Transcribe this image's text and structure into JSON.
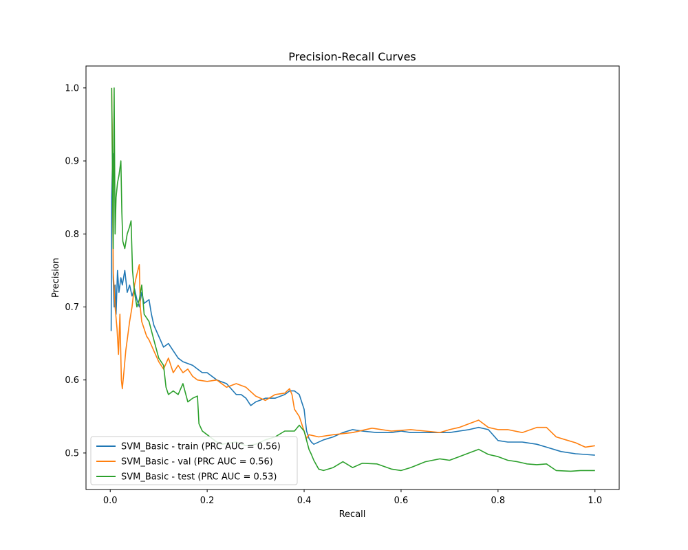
{
  "chart_data": {
    "type": "line",
    "title": "Precision-Recall Curves",
    "xlabel": "Recall",
    "ylabel": "Precision",
    "xlim": [
      -0.05,
      1.05
    ],
    "ylim": [
      0.45,
      1.03
    ],
    "xticks": [
      0.0,
      0.2,
      0.4,
      0.6,
      0.8,
      1.0
    ],
    "xtick_labels": [
      "0.0",
      "0.2",
      "0.4",
      "0.6",
      "0.8",
      "1.0"
    ],
    "yticks": [
      0.5,
      0.6,
      0.7,
      0.8,
      0.9,
      1.0
    ],
    "ytick_labels": [
      "0.5",
      "0.6",
      "0.7",
      "0.8",
      "0.9",
      "1.0"
    ],
    "grid": false,
    "legend_position": "lower-left",
    "series": [
      {
        "name": "SVM_Basic - train (PRC AUC = 0.56)",
        "color": "#1f77b4",
        "points": [
          [
            0.002,
            0.667
          ],
          [
            0.003,
            0.85
          ],
          [
            0.005,
            0.91
          ],
          [
            0.006,
            0.74
          ],
          [
            0.008,
            0.7
          ],
          [
            0.01,
            0.73
          ],
          [
            0.012,
            0.69
          ],
          [
            0.015,
            0.75
          ],
          [
            0.018,
            0.72
          ],
          [
            0.022,
            0.74
          ],
          [
            0.025,
            0.73
          ],
          [
            0.03,
            0.75
          ],
          [
            0.035,
            0.72
          ],
          [
            0.04,
            0.73
          ],
          [
            0.045,
            0.715
          ],
          [
            0.05,
            0.725
          ],
          [
            0.055,
            0.71
          ],
          [
            0.06,
            0.7
          ],
          [
            0.065,
            0.72
          ],
          [
            0.07,
            0.705
          ],
          [
            0.08,
            0.71
          ],
          [
            0.085,
            0.69
          ],
          [
            0.09,
            0.675
          ],
          [
            0.1,
            0.66
          ],
          [
            0.11,
            0.645
          ],
          [
            0.12,
            0.65
          ],
          [
            0.13,
            0.64
          ],
          [
            0.14,
            0.63
          ],
          [
            0.15,
            0.625
          ],
          [
            0.17,
            0.62
          ],
          [
            0.19,
            0.61
          ],
          [
            0.2,
            0.61
          ],
          [
            0.22,
            0.6
          ],
          [
            0.24,
            0.595
          ],
          [
            0.26,
            0.58
          ],
          [
            0.27,
            0.58
          ],
          [
            0.28,
            0.575
          ],
          [
            0.29,
            0.565
          ],
          [
            0.3,
            0.57
          ],
          [
            0.32,
            0.575
          ],
          [
            0.34,
            0.575
          ],
          [
            0.36,
            0.58
          ],
          [
            0.37,
            0.585
          ],
          [
            0.38,
            0.585
          ],
          [
            0.39,
            0.58
          ],
          [
            0.395,
            0.57
          ],
          [
            0.4,
            0.56
          ],
          [
            0.405,
            0.53
          ],
          [
            0.41,
            0.52
          ],
          [
            0.415,
            0.515
          ],
          [
            0.42,
            0.512
          ],
          [
            0.44,
            0.518
          ],
          [
            0.46,
            0.522
          ],
          [
            0.48,
            0.528
          ],
          [
            0.5,
            0.532
          ],
          [
            0.52,
            0.53
          ],
          [
            0.55,
            0.528
          ],
          [
            0.58,
            0.528
          ],
          [
            0.6,
            0.53
          ],
          [
            0.62,
            0.528
          ],
          [
            0.65,
            0.528
          ],
          [
            0.7,
            0.528
          ],
          [
            0.72,
            0.53
          ],
          [
            0.74,
            0.532
          ],
          [
            0.76,
            0.535
          ],
          [
            0.78,
            0.532
          ],
          [
            0.8,
            0.517
          ],
          [
            0.82,
            0.515
          ],
          [
            0.85,
            0.515
          ],
          [
            0.88,
            0.512
          ],
          [
            0.9,
            0.508
          ],
          [
            0.93,
            0.502
          ],
          [
            0.96,
            0.499
          ],
          [
            0.98,
            0.498
          ],
          [
            1.0,
            0.497
          ]
        ]
      },
      {
        "name": "SVM_Basic - val (PRC AUC = 0.56)",
        "color": "#ff7f0e",
        "points": [
          [
            0.003,
            1.0
          ],
          [
            0.004,
            0.95
          ],
          [
            0.006,
            0.75
          ],
          [
            0.01,
            0.7
          ],
          [
            0.014,
            0.67
          ],
          [
            0.017,
            0.635
          ],
          [
            0.02,
            0.69
          ],
          [
            0.023,
            0.6
          ],
          [
            0.025,
            0.588
          ],
          [
            0.028,
            0.61
          ],
          [
            0.032,
            0.64
          ],
          [
            0.036,
            0.66
          ],
          [
            0.04,
            0.68
          ],
          [
            0.045,
            0.7
          ],
          [
            0.05,
            0.73
          ],
          [
            0.055,
            0.745
          ],
          [
            0.06,
            0.758
          ],
          [
            0.062,
            0.7
          ],
          [
            0.065,
            0.68
          ],
          [
            0.07,
            0.67
          ],
          [
            0.075,
            0.66
          ],
          [
            0.08,
            0.655
          ],
          [
            0.09,
            0.64
          ],
          [
            0.1,
            0.625
          ],
          [
            0.11,
            0.615
          ],
          [
            0.12,
            0.63
          ],
          [
            0.13,
            0.61
          ],
          [
            0.14,
            0.62
          ],
          [
            0.15,
            0.61
          ],
          [
            0.16,
            0.615
          ],
          [
            0.17,
            0.605
          ],
          [
            0.18,
            0.6
          ],
          [
            0.2,
            0.598
          ],
          [
            0.22,
            0.6
          ],
          [
            0.24,
            0.59
          ],
          [
            0.26,
            0.595
          ],
          [
            0.28,
            0.59
          ],
          [
            0.3,
            0.578
          ],
          [
            0.32,
            0.572
          ],
          [
            0.34,
            0.58
          ],
          [
            0.36,
            0.582
          ],
          [
            0.37,
            0.588
          ],
          [
            0.375,
            0.58
          ],
          [
            0.38,
            0.56
          ],
          [
            0.39,
            0.55
          ],
          [
            0.4,
            0.53
          ],
          [
            0.405,
            0.52
          ],
          [
            0.41,
            0.525
          ],
          [
            0.43,
            0.522
          ],
          [
            0.46,
            0.525
          ],
          [
            0.5,
            0.528
          ],
          [
            0.54,
            0.534
          ],
          [
            0.58,
            0.53
          ],
          [
            0.62,
            0.532
          ],
          [
            0.65,
            0.53
          ],
          [
            0.68,
            0.528
          ],
          [
            0.7,
            0.532
          ],
          [
            0.72,
            0.535
          ],
          [
            0.74,
            0.54
          ],
          [
            0.76,
            0.545
          ],
          [
            0.78,
            0.535
          ],
          [
            0.8,
            0.532
          ],
          [
            0.82,
            0.532
          ],
          [
            0.85,
            0.528
          ],
          [
            0.88,
            0.535
          ],
          [
            0.9,
            0.535
          ],
          [
            0.92,
            0.522
          ],
          [
            0.94,
            0.518
          ],
          [
            0.96,
            0.514
          ],
          [
            0.98,
            0.508
          ],
          [
            1.0,
            0.51
          ]
        ]
      },
      {
        "name": "SVM_Basic - test (PRC AUC = 0.53)",
        "color": "#2ca02c",
        "points": [
          [
            0.003,
            1.0
          ],
          [
            0.006,
            0.78
          ],
          [
            0.008,
            1.0
          ],
          [
            0.01,
            0.8
          ],
          [
            0.012,
            0.85
          ],
          [
            0.015,
            0.87
          ],
          [
            0.018,
            0.88
          ],
          [
            0.022,
            0.9
          ],
          [
            0.024,
            0.83
          ],
          [
            0.026,
            0.79
          ],
          [
            0.03,
            0.78
          ],
          [
            0.035,
            0.8
          ],
          [
            0.04,
            0.81
          ],
          [
            0.043,
            0.818
          ],
          [
            0.046,
            0.75
          ],
          [
            0.05,
            0.72
          ],
          [
            0.055,
            0.7
          ],
          [
            0.06,
            0.71
          ],
          [
            0.065,
            0.73
          ],
          [
            0.07,
            0.69
          ],
          [
            0.075,
            0.685
          ],
          [
            0.08,
            0.68
          ],
          [
            0.09,
            0.655
          ],
          [
            0.1,
            0.63
          ],
          [
            0.11,
            0.62
          ],
          [
            0.115,
            0.59
          ],
          [
            0.12,
            0.58
          ],
          [
            0.13,
            0.585
          ],
          [
            0.14,
            0.58
          ],
          [
            0.15,
            0.595
          ],
          [
            0.16,
            0.57
          ],
          [
            0.17,
            0.575
          ],
          [
            0.18,
            0.578
          ],
          [
            0.183,
            0.54
          ],
          [
            0.19,
            0.53
          ],
          [
            0.2,
            0.525
          ],
          [
            0.21,
            0.52
          ],
          [
            0.22,
            0.515
          ],
          [
            0.23,
            0.512
          ],
          [
            0.26,
            0.515
          ],
          [
            0.28,
            0.51
          ],
          [
            0.3,
            0.512
          ],
          [
            0.32,
            0.518
          ],
          [
            0.34,
            0.522
          ],
          [
            0.36,
            0.53
          ],
          [
            0.38,
            0.53
          ],
          [
            0.39,
            0.538
          ],
          [
            0.4,
            0.53
          ],
          [
            0.41,
            0.505
          ],
          [
            0.415,
            0.498
          ],
          [
            0.42,
            0.49
          ],
          [
            0.43,
            0.478
          ],
          [
            0.44,
            0.476
          ],
          [
            0.46,
            0.48
          ],
          [
            0.48,
            0.488
          ],
          [
            0.5,
            0.48
          ],
          [
            0.52,
            0.486
          ],
          [
            0.55,
            0.485
          ],
          [
            0.58,
            0.478
          ],
          [
            0.6,
            0.476
          ],
          [
            0.62,
            0.48
          ],
          [
            0.65,
            0.488
          ],
          [
            0.68,
            0.492
          ],
          [
            0.7,
            0.49
          ],
          [
            0.72,
            0.495
          ],
          [
            0.74,
            0.5
          ],
          [
            0.76,
            0.505
          ],
          [
            0.78,
            0.498
          ],
          [
            0.8,
            0.495
          ],
          [
            0.82,
            0.49
          ],
          [
            0.84,
            0.488
          ],
          [
            0.86,
            0.485
          ],
          [
            0.88,
            0.484
          ],
          [
            0.9,
            0.485
          ],
          [
            0.92,
            0.476
          ],
          [
            0.95,
            0.475
          ],
          [
            0.97,
            0.476
          ],
          [
            1.0,
            0.476
          ]
        ]
      }
    ]
  }
}
